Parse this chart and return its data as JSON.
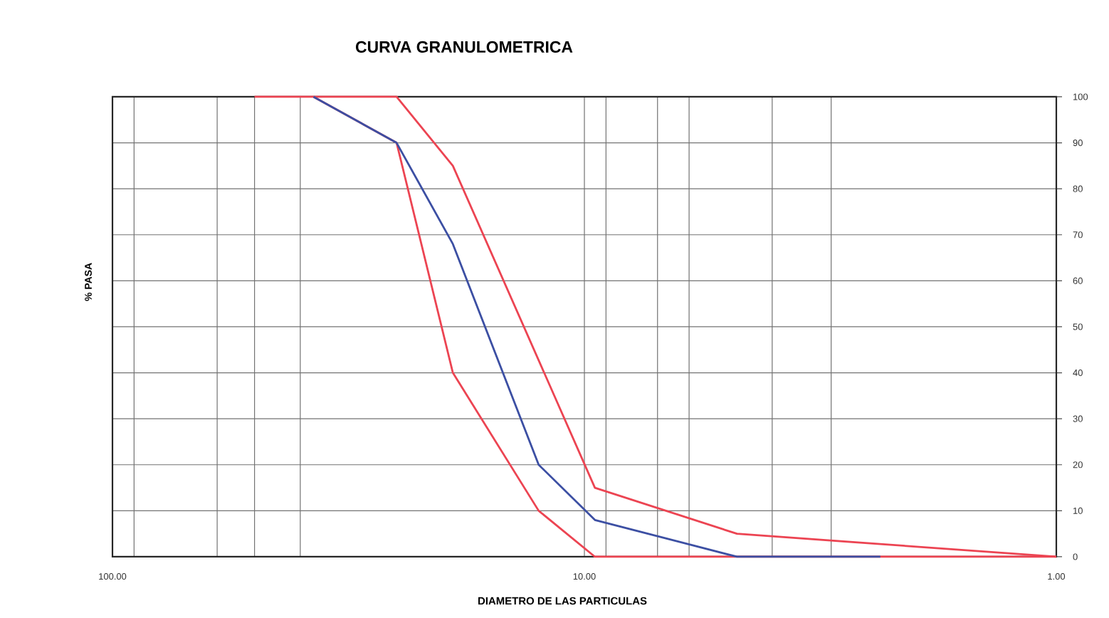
{
  "chart_data": {
    "type": "line",
    "title": "CURVA GRANULOMETRICA",
    "xlabel": "DIAMETRO DE LAS PARTICULAS",
    "ylabel": "% PASA",
    "log": "x",
    "grid": true,
    "xlim": [
      100,
      1
    ],
    "xticks": [
      {
        "value": 100,
        "label": "100.00"
      },
      {
        "value": 90,
        "label": null
      },
      {
        "value": 60,
        "label": null
      },
      {
        "value": 50,
        "label": null
      },
      {
        "value": 40,
        "label": null
      },
      {
        "value": 10,
        "label": "10.00"
      },
      {
        "value": 9,
        "label": null
      },
      {
        "value": 7,
        "label": null
      },
      {
        "value": 6,
        "label": null
      },
      {
        "value": 4,
        "label": null
      },
      {
        "value": 3,
        "label": null
      },
      {
        "value": 1,
        "label": "1.00"
      }
    ],
    "ylim": [
      0,
      100
    ],
    "yticks": [
      0,
      10,
      20,
      30,
      40,
      50,
      60,
      70,
      80,
      90,
      100
    ],
    "series": [
      {
        "color": "#ec4452",
        "x": [
          50,
          37.5,
          25,
          19,
          9.5,
          4.75,
          1
        ],
        "values": [
          100,
          100,
          100,
          85,
          15,
          5,
          0
        ]
      },
      {
        "color": "#ec4452",
        "x": [
          37.5,
          25,
          19,
          12.5,
          9.5,
          4.75,
          2.36,
          1
        ],
        "values": [
          100,
          90,
          40,
          10,
          0,
          0,
          0,
          0
        ]
      },
      {
        "color": "#3c4fa3",
        "x": [
          37.5,
          25,
          19,
          12.5,
          9.5,
          4.75,
          2.36
        ],
        "values": [
          100,
          90,
          68,
          20,
          8,
          0,
          0
        ]
      }
    ]
  }
}
